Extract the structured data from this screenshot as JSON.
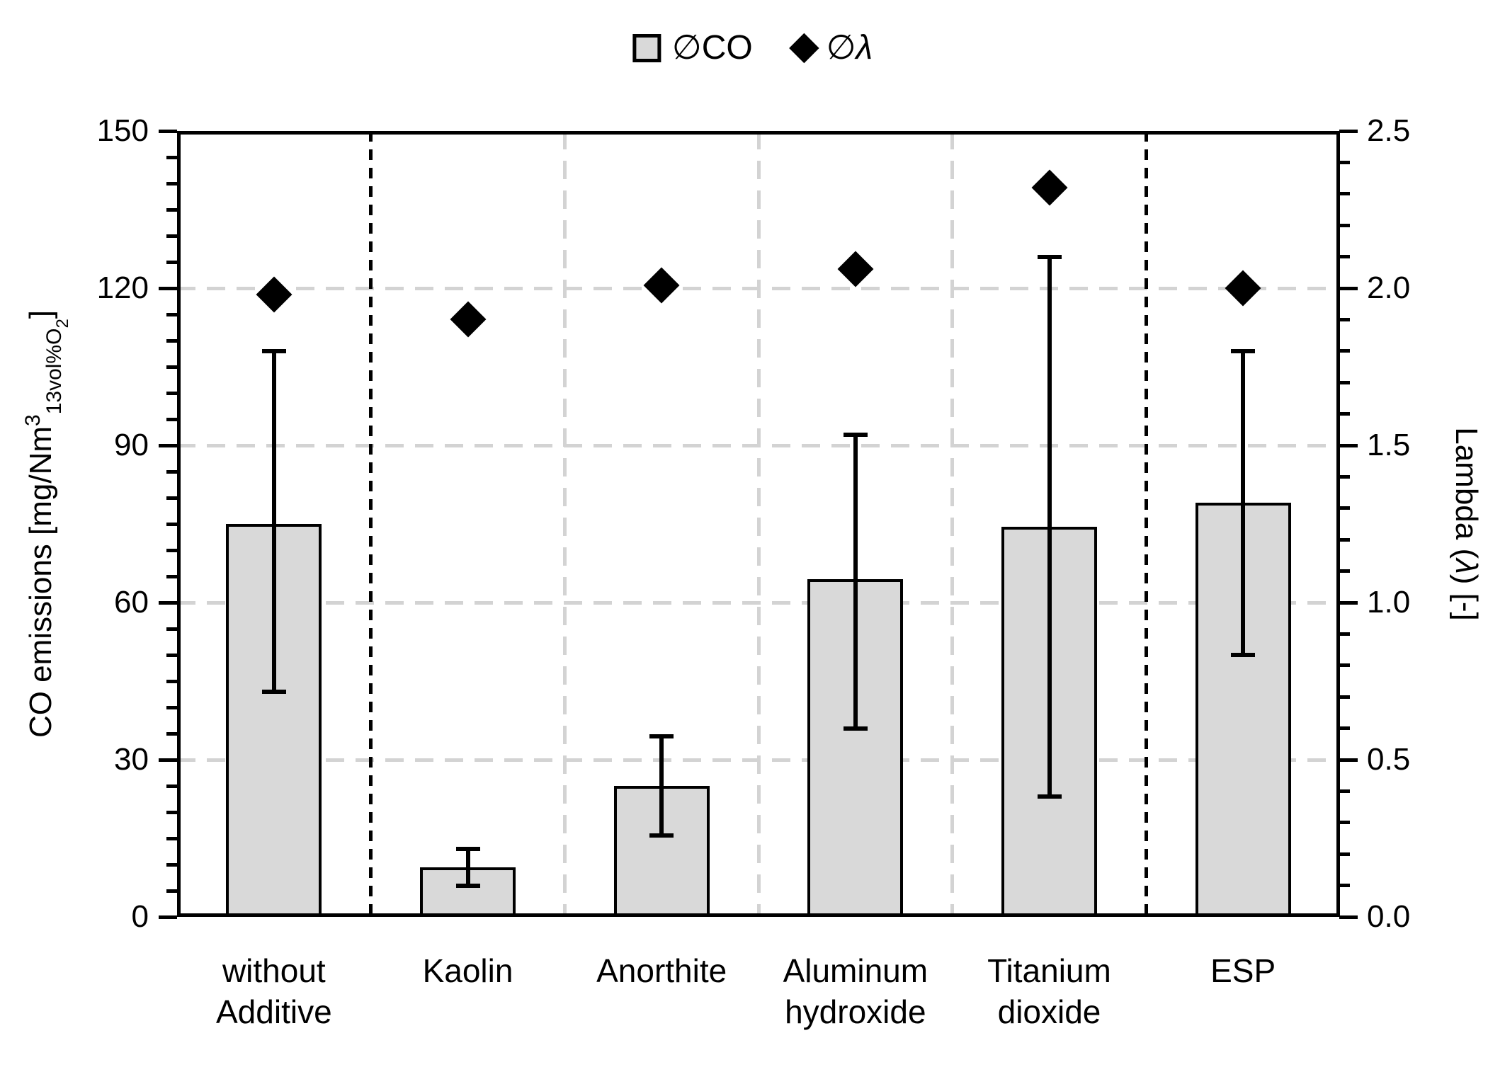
{
  "legend": {
    "co_label": "∅CO",
    "lambda_prefix": "∅",
    "lambda_char": "λ"
  },
  "left_axis": {
    "title_pre": "CO emissions [mg/Nm",
    "title_sup": "3",
    "title_sub": "13vol%O",
    "title_subsub": "2",
    "title_post": "]",
    "tick_labels": [
      "0",
      "30",
      "60",
      "90",
      "120",
      "150"
    ]
  },
  "right_axis": {
    "title_pre": "Lambda (",
    "title_lambda": "λ",
    "title_post": ") [-]",
    "tick_labels": [
      "0.0",
      "0.5",
      "1.0",
      "1.5",
      "2.0",
      "2.5"
    ]
  },
  "chart_data": {
    "type": "bar",
    "title": "",
    "categories": [
      "without Additive",
      "Kaolin",
      "Anorthite",
      "Aluminum hydroxide",
      "Titanium dioxide",
      "ESP"
    ],
    "category_label_lines": [
      [
        "without",
        "Additive"
      ],
      [
        "Kaolin"
      ],
      [
        "Anorthite"
      ],
      [
        "Aluminum",
        "hydroxide"
      ],
      [
        "Titanium",
        "dioxide"
      ],
      [
        "ESP"
      ]
    ],
    "series": [
      {
        "name": "∅CO",
        "type": "bar",
        "axis": "left",
        "values": [
          75,
          9.5,
          25,
          64.5,
          74.5,
          79
        ],
        "error_low": [
          43,
          6,
          15.5,
          36,
          23,
          50
        ],
        "error_high": [
          108,
          13,
          34.5,
          92,
          126,
          108
        ]
      },
      {
        "name": "∅λ",
        "type": "scatter",
        "marker": "diamond",
        "axis": "right",
        "values": [
          1.98,
          1.9,
          2.01,
          2.06,
          2.32,
          2.0
        ]
      }
    ],
    "left_axis_label": "CO emissions [mg/Nm3 13vol%O2]",
    "right_axis_label": "Lambda (λ) [-]",
    "left_range": [
      0,
      150
    ],
    "left_major": 30,
    "left_minor": 5,
    "right_range": [
      0,
      2.5
    ],
    "right_major": 0.5,
    "right_minor": 0.1,
    "h_gridlines": [
      30,
      60,
      90,
      120
    ],
    "v_gray_boundaries": [
      2,
      3,
      4
    ],
    "v_black_boundaries": [
      1,
      5
    ],
    "grid_on": true,
    "legend_position": "top-center",
    "colors": {
      "bar_fill": "#d9d9d9",
      "bar_border": "#000000",
      "gridline": "#d3d3d3",
      "marker": "#000000"
    }
  }
}
